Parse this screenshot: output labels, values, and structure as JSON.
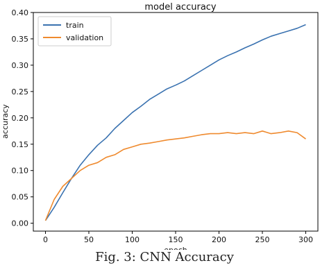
{
  "chart_data": {
    "type": "line",
    "title": "model accuracy",
    "xlabel": "epoch",
    "ylabel": "accuracy",
    "xlim": [
      -14,
      314
    ],
    "ylim": [
      -0.015,
      0.4
    ],
    "xticks": [
      0,
      50,
      100,
      150,
      200,
      250,
      300
    ],
    "yticks": [
      0.0,
      0.05,
      0.1,
      0.15,
      0.2,
      0.25,
      0.3,
      0.35,
      0.4
    ],
    "ytick_labels": [
      "0.00",
      "0.05",
      "0.10",
      "0.15",
      "0.20",
      "0.25",
      "0.30",
      "0.35",
      "0.40"
    ],
    "grid": false,
    "legend": "top-left",
    "series": [
      {
        "name": "train",
        "color": "#3a72b0",
        "x": [
          0,
          10,
          20,
          30,
          40,
          50,
          60,
          70,
          80,
          90,
          100,
          110,
          120,
          130,
          140,
          150,
          160,
          170,
          180,
          190,
          200,
          210,
          220,
          230,
          240,
          250,
          260,
          270,
          280,
          290,
          300
        ],
        "y": [
          0.005,
          0.03,
          0.058,
          0.085,
          0.11,
          0.13,
          0.148,
          0.162,
          0.18,
          0.195,
          0.21,
          0.222,
          0.235,
          0.245,
          0.255,
          0.262,
          0.27,
          0.28,
          0.29,
          0.3,
          0.31,
          0.318,
          0.325,
          0.333,
          0.34,
          0.348,
          0.355,
          0.36,
          0.365,
          0.37,
          0.377
        ]
      },
      {
        "name": "validation",
        "color": "#ef8a2e",
        "x": [
          0,
          10,
          20,
          30,
          40,
          50,
          60,
          70,
          80,
          90,
          100,
          110,
          120,
          130,
          140,
          150,
          160,
          170,
          180,
          190,
          200,
          210,
          220,
          230,
          240,
          250,
          260,
          270,
          280,
          290,
          300
        ],
        "y": [
          0.005,
          0.045,
          0.07,
          0.085,
          0.1,
          0.11,
          0.115,
          0.125,
          0.13,
          0.14,
          0.145,
          0.15,
          0.152,
          0.155,
          0.158,
          0.16,
          0.162,
          0.165,
          0.168,
          0.17,
          0.17,
          0.172,
          0.17,
          0.172,
          0.17,
          0.175,
          0.17,
          0.172,
          0.175,
          0.172,
          0.16
        ]
      }
    ]
  },
  "caption": "Fig. 3: CNN Accuracy"
}
